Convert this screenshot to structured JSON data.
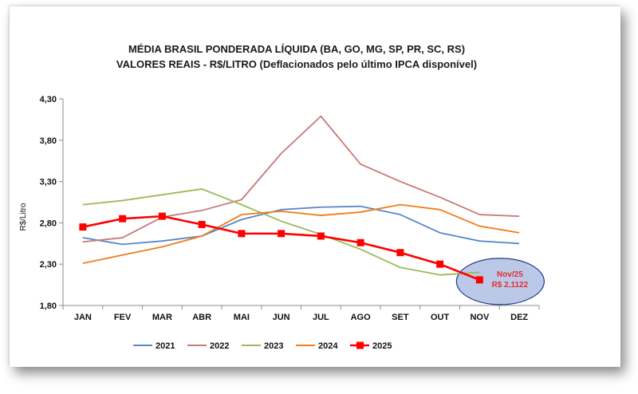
{
  "chart_data": {
    "type": "line",
    "title": "MÉDIA BRASIL PONDERADA LÍQUIDA (BA, GO, MG, SP, PR, SC, RS)",
    "subtitle": "VALORES REAIS - R$/LITRO (Deflacionados pelo último IPCA disponível)",
    "ylabel": "R$/Litro",
    "xlabel": "",
    "ylim": [
      1.8,
      4.3
    ],
    "yticks": [
      "1,80",
      "2,30",
      "2,80",
      "3,30",
      "3,80",
      "4,30"
    ],
    "ytick_values": [
      1.8,
      2.3,
      2.8,
      3.3,
      3.8,
      4.3
    ],
    "categories": [
      "JAN",
      "FEV",
      "MAR",
      "ABR",
      "MAI",
      "JUN",
      "JUL",
      "AGO",
      "SET",
      "OUT",
      "NOV",
      "DEZ"
    ],
    "grid": false,
    "legend_position": "bottom",
    "series": [
      {
        "name": "2021",
        "color": "#5b87c5",
        "marker": "none",
        "values": [
          2.62,
          2.54,
          2.58,
          2.64,
          2.84,
          2.96,
          2.99,
          3.0,
          2.9,
          2.68,
          2.58,
          2.55
        ]
      },
      {
        "name": "2022",
        "color": "#c87a78",
        "marker": "none",
        "values": [
          2.57,
          2.62,
          2.87,
          2.95,
          3.08,
          3.64,
          4.09,
          3.51,
          3.3,
          3.11,
          2.9,
          2.88
        ]
      },
      {
        "name": "2023",
        "color": "#9bbb59",
        "marker": "none",
        "values": [
          3.02,
          3.07,
          3.14,
          3.21,
          3.02,
          2.82,
          2.66,
          2.48,
          2.26,
          2.17,
          2.2,
          null
        ]
      },
      {
        "name": "2024",
        "color": "#f07c1c",
        "marker": "none",
        "values": [
          2.31,
          2.41,
          2.51,
          2.64,
          2.9,
          2.94,
          2.89,
          2.93,
          3.02,
          2.96,
          2.76,
          2.68
        ]
      },
      {
        "name": "2025",
        "color": "#ff0000",
        "marker": "square",
        "values": [
          2.75,
          2.85,
          2.88,
          2.78,
          2.67,
          2.67,
          2.64,
          2.56,
          2.44,
          2.3,
          2.11,
          null
        ]
      }
    ],
    "annotation": {
      "line1": "Nov/25",
      "line2": "R$ 2,1122",
      "text_color": "#e03030",
      "fill": "#bcc8e8",
      "stroke": "#1f3a8a"
    }
  }
}
